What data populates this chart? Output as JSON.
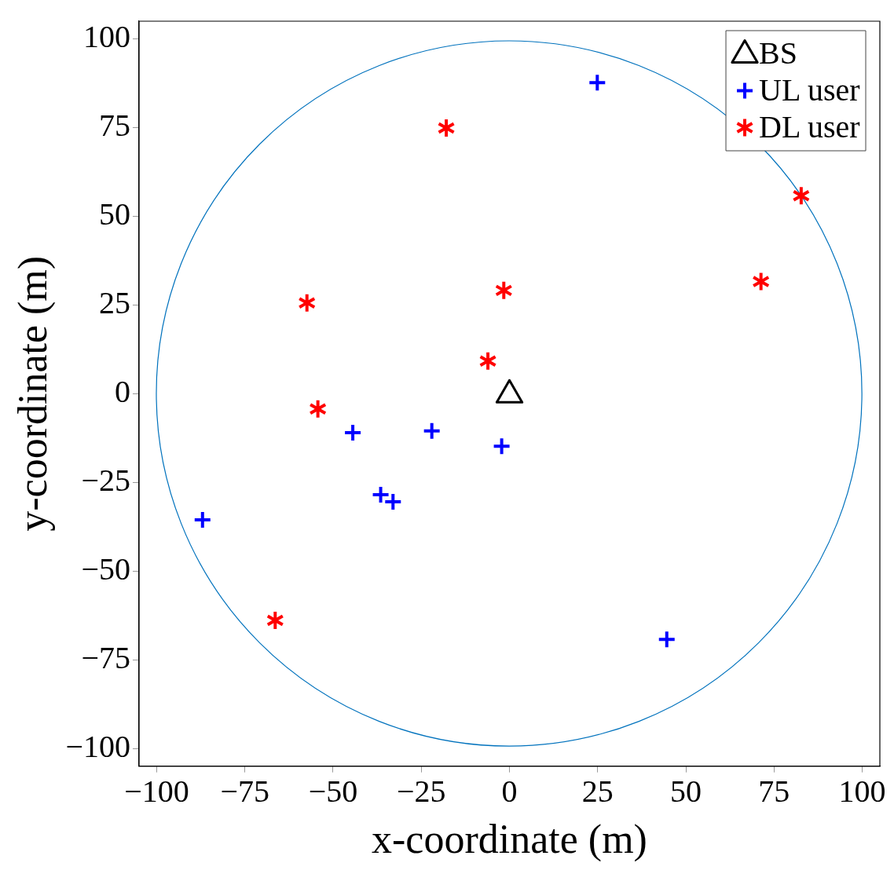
{
  "chart_data": {
    "type": "scatter",
    "xlabel": "x-coordinate (m)",
    "ylabel": "y-coordinate (m)",
    "xlim": [
      -105,
      105
    ],
    "ylim": [
      -105,
      105
    ],
    "xticks": [
      {
        "value": -100,
        "label": "−100"
      },
      {
        "value": -75,
        "label": "−75"
      },
      {
        "value": -50,
        "label": "−50"
      },
      {
        "value": -25,
        "label": "−25"
      },
      0,
      25,
      50,
      75,
      100
    ],
    "yticks": [
      {
        "value": -100,
        "label": "−100"
      },
      {
        "value": -75,
        "label": "−75"
      },
      {
        "value": -50,
        "label": "−50"
      },
      {
        "value": -25,
        "label": "−25"
      },
      0,
      25,
      50,
      75,
      100
    ],
    "grid": false,
    "legend": "top right",
    "series": [
      {
        "name": "BS",
        "type": "scatter",
        "color": "#000000",
        "marker": "triangle",
        "x": [
          0
        ],
        "values": [
          0
        ]
      },
      {
        "name": "UL user",
        "type": "scatter",
        "color": "#0000ff",
        "marker": "cross",
        "x": [
          24.9,
          -44.4,
          -22,
          -2.2,
          -36.5,
          -33,
          -87,
          44.6
        ],
        "values": [
          87.7,
          -11,
          -10.5,
          -14.8,
          -28.5,
          -30.5,
          -35.6,
          -69.3
        ]
      },
      {
        "name": "DL user",
        "type": "scatter",
        "color": "#ff0000",
        "marker": "star",
        "x": [
          -17.9,
          82.7,
          71.3,
          -1.6,
          -57.4,
          -6.1,
          -54.3,
          -66.4
        ],
        "values": [
          74.9,
          55.8,
          31.6,
          29.1,
          25.6,
          9.2,
          -4.3,
          -63.9
        ]
      }
    ]
  }
}
